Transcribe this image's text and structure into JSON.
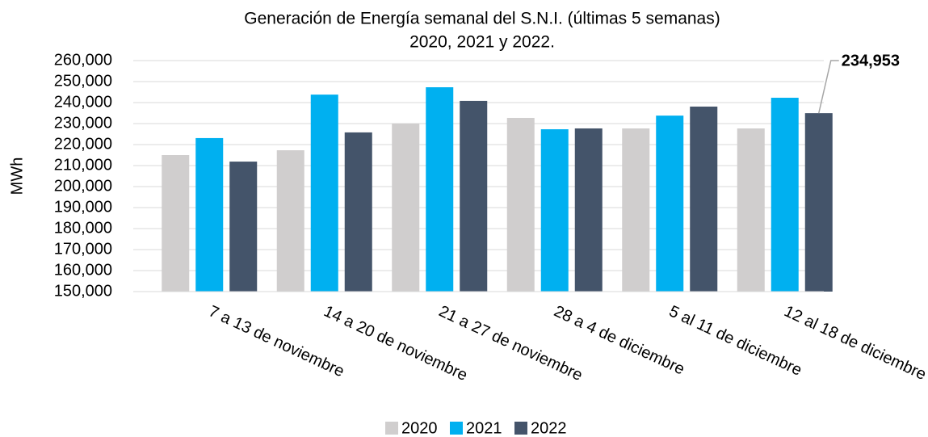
{
  "chart_data": {
    "type": "bar",
    "title": "Generación de Energía semanal del S.N.I. (últimas 5 semanas)",
    "subtitle": "2020, 2021 y 2022.",
    "y_label": "MWh",
    "categories": [
      "7 a 13 de noviembre",
      "14 a 20 de noviembre",
      "21 a 27 de noviembre",
      "28 a 4 de diciembre",
      "5 al 11 de diciembre",
      "12 al 18 de diciembre"
    ],
    "series": [
      {
        "name": "2020",
        "color": "#d0cece",
        "values": [
          215000,
          217300,
          230000,
          232700,
          227700,
          227700
        ]
      },
      {
        "name": "2021",
        "color": "#00b0f0",
        "values": [
          223100,
          243800,
          247300,
          227300,
          233800,
          242300
        ]
      },
      {
        "name": "2022",
        "color": "#44546a",
        "values": [
          211900,
          225800,
          240800,
          227700,
          238100,
          234953
        ],
        "value_labels": [
          null,
          null,
          null,
          null,
          null,
          "234,953"
        ]
      }
    ],
    "ylim": [
      150000,
      260000
    ],
    "yticks": [
      {
        "value": 150000,
        "label": "150,000"
      },
      {
        "value": 160000,
        "label": "160,000"
      },
      {
        "value": 170000,
        "label": "170,000"
      },
      {
        "value": 180000,
        "label": "180,000"
      },
      {
        "value": 190000,
        "label": "190,000"
      },
      {
        "value": 200000,
        "label": "200,000"
      },
      {
        "value": 210000,
        "label": "210,000"
      },
      {
        "value": 220000,
        "label": "220,000"
      },
      {
        "value": 230000,
        "label": "230,000"
      },
      {
        "value": 240000,
        "label": "240,000"
      },
      {
        "value": 250000,
        "label": "250,000"
      },
      {
        "value": 260000,
        "label": "260,000"
      }
    ],
    "grid": true,
    "legend": "bottom"
  }
}
